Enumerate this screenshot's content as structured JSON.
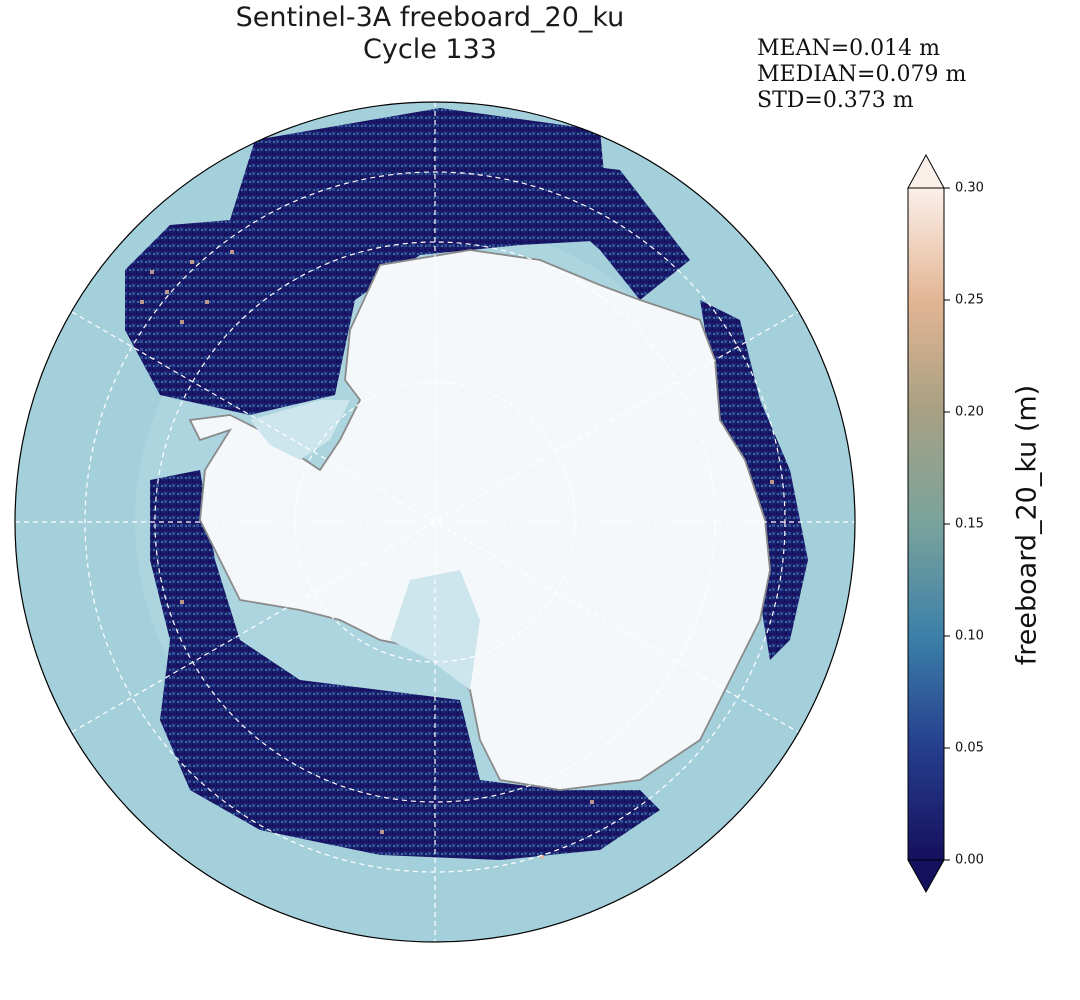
{
  "title": {
    "line1": "Sentinel-3A freeboard_20_ku",
    "line2": "Cycle 133"
  },
  "stats": {
    "mean": "MEAN=0.014 m",
    "median": "MEDIAN=0.079 m",
    "std": "STD=0.373 m"
  },
  "colorbar": {
    "label": "freeboard_20_ku (m)",
    "ticks": [
      "0.00",
      "0.05",
      "0.10",
      "0.15",
      "0.20",
      "0.25",
      "0.30"
    ],
    "range": [
      0.0,
      0.3
    ],
    "extend": "both",
    "colormap_stops": [
      "#15105e",
      "#263f8e",
      "#3b7fa8",
      "#7aa39c",
      "#a8a083",
      "#e2b593",
      "#fbefe9"
    ]
  },
  "map": {
    "projection": "south polar stereographic",
    "ocean_color": "#a4d0dc",
    "land_color": "#f4f8fa",
    "coastline_color": "#8a8a8a",
    "graticule_color": "#ffffff",
    "graticule_style": "dashed"
  }
}
